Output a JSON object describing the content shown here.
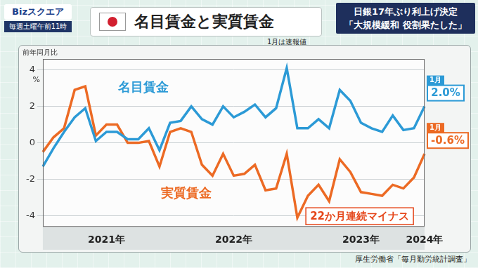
{
  "header": {
    "logo": "Bizスクエア",
    "schedule": "毎週土曜午前11時",
    "headline": [
      "日銀17年ぶり利上げ決定",
      "「大規模緩和 役割果たした」"
    ],
    "note": "1月は速報値",
    "source": "厚生労働省「毎月勤労統計調査」"
  },
  "chart_data": {
    "type": "line",
    "title": "名目賃金と実質賃金",
    "ylabel": "前年同月比",
    "yunit": "%",
    "categories": [
      null,
      null,
      null,
      null,
      null,
      null,
      "2021年",
      null,
      null,
      null,
      null,
      null,
      null,
      null,
      null,
      null,
      null,
      null,
      "2022年",
      null,
      null,
      null,
      null,
      null,
      null,
      null,
      null,
      null,
      null,
      null,
      "2023年",
      null,
      null,
      null,
      null,
      null,
      "2024年"
    ],
    "series": [
      {
        "name": "名目賃金",
        "color": "#2c9ad6",
        "values": [
          -1.3,
          -0.3,
          0.6,
          1.4,
          1.9,
          0.1,
          0.6,
          0.6,
          0.2,
          0.2,
          0.8,
          -0.4,
          1.1,
          1.2,
          2.0,
          1.3,
          1.0,
          2.0,
          1.4,
          1.7,
          2.1,
          1.4,
          1.9,
          4.1,
          0.8,
          0.8,
          1.3,
          0.8,
          2.9,
          2.3,
          1.1,
          0.8,
          0.6,
          1.5,
          0.7,
          0.8,
          2.0
        ],
        "end_label": {
          "month": "1月",
          "text": "2.0%"
        }
      },
      {
        "name": "実質賃金",
        "color": "#ec6a24",
        "values": [
          -0.5,
          0.3,
          0.8,
          2.9,
          3.1,
          0.4,
          1.0,
          1.0,
          0.0,
          0.0,
          0.1,
          -1.3,
          0.6,
          0.8,
          0.6,
          -1.2,
          -1.8,
          -0.6,
          -1.8,
          -1.7,
          -1.2,
          -2.6,
          -2.5,
          -0.6,
          -4.1,
          -2.9,
          -2.3,
          -3.2,
          -0.9,
          -1.6,
          -2.7,
          -2.8,
          -2.9,
          -2.3,
          -2.5,
          -1.9,
          -0.6
        ],
        "end_label": {
          "month": "1月",
          "text": "-0.6%"
        }
      }
    ],
    "annotations": [
      {
        "text": "22か月連続マイナス",
        "color": "#e5461a"
      }
    ],
    "ylim": [
      -4.6,
      4.6
    ],
    "yticks": [
      -4,
      -2,
      0,
      2,
      4
    ],
    "grid": true
  }
}
